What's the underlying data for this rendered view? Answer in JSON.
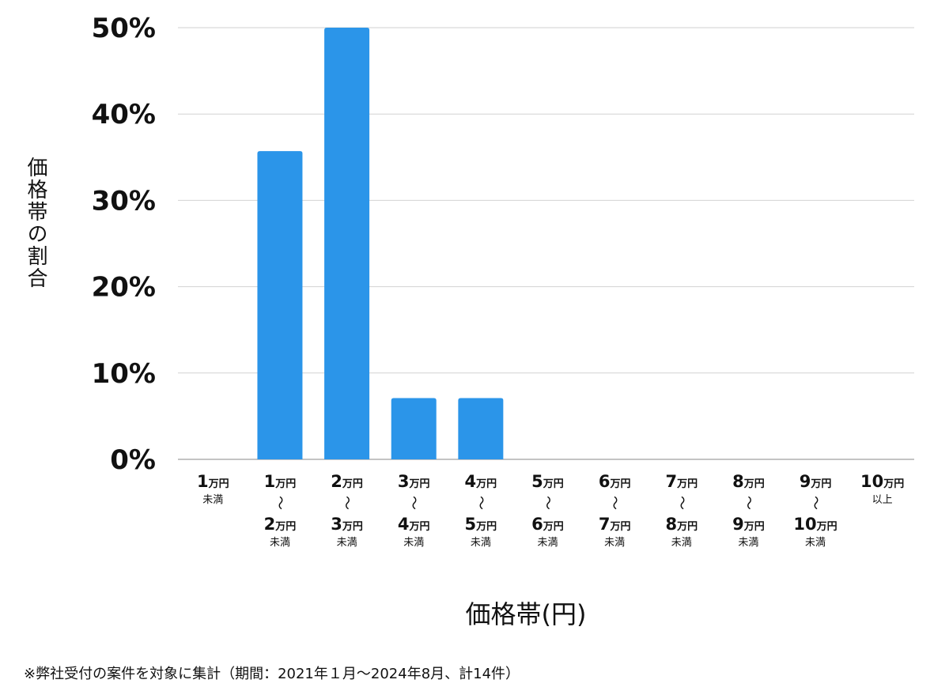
{
  "chart_data": {
    "type": "bar",
    "title": "",
    "xlabel": "価格帯(円)",
    "ylabel": "価格帯の割合",
    "ylim": [
      0,
      50
    ],
    "yticks": [
      "0%",
      "10%",
      "20%",
      "30%",
      "40%",
      "50%"
    ],
    "grid": true,
    "bar_color": "#2b95e9",
    "categories": [
      {
        "from": "1",
        "from_unit": "万円",
        "to": "",
        "to_unit": "",
        "note": "未満"
      },
      {
        "from": "1",
        "from_unit": "万円",
        "to": "2",
        "to_unit": "万円",
        "note": "未満"
      },
      {
        "from": "2",
        "from_unit": "万円",
        "to": "3",
        "to_unit": "万円",
        "note": "未満"
      },
      {
        "from": "3",
        "from_unit": "万円",
        "to": "4",
        "to_unit": "万円",
        "note": "未満"
      },
      {
        "from": "4",
        "from_unit": "万円",
        "to": "5",
        "to_unit": "万円",
        "note": "未満"
      },
      {
        "from": "5",
        "from_unit": "万円",
        "to": "6",
        "to_unit": "万円",
        "note": "未満"
      },
      {
        "from": "6",
        "from_unit": "万円",
        "to": "7",
        "to_unit": "万円",
        "note": "未満"
      },
      {
        "from": "7",
        "from_unit": "万円",
        "to": "8",
        "to_unit": "万円",
        "note": "未満"
      },
      {
        "from": "8",
        "from_unit": "万円",
        "to": "9",
        "to_unit": "万円",
        "note": "未満"
      },
      {
        "from": "9",
        "from_unit": "万円",
        "to": "10",
        "to_unit": "万円",
        "note": "未満"
      },
      {
        "from": "10",
        "from_unit": "万円",
        "to": "",
        "to_unit": "",
        "note": "以上"
      }
    ],
    "values": [
      0,
      35.7,
      50,
      7.1,
      7.1,
      0,
      0,
      0,
      0,
      0,
      0
    ]
  },
  "footnote": "※弊社受付の案件を対象に集計（期間：2021年１月〜2024年8月、計14件）"
}
